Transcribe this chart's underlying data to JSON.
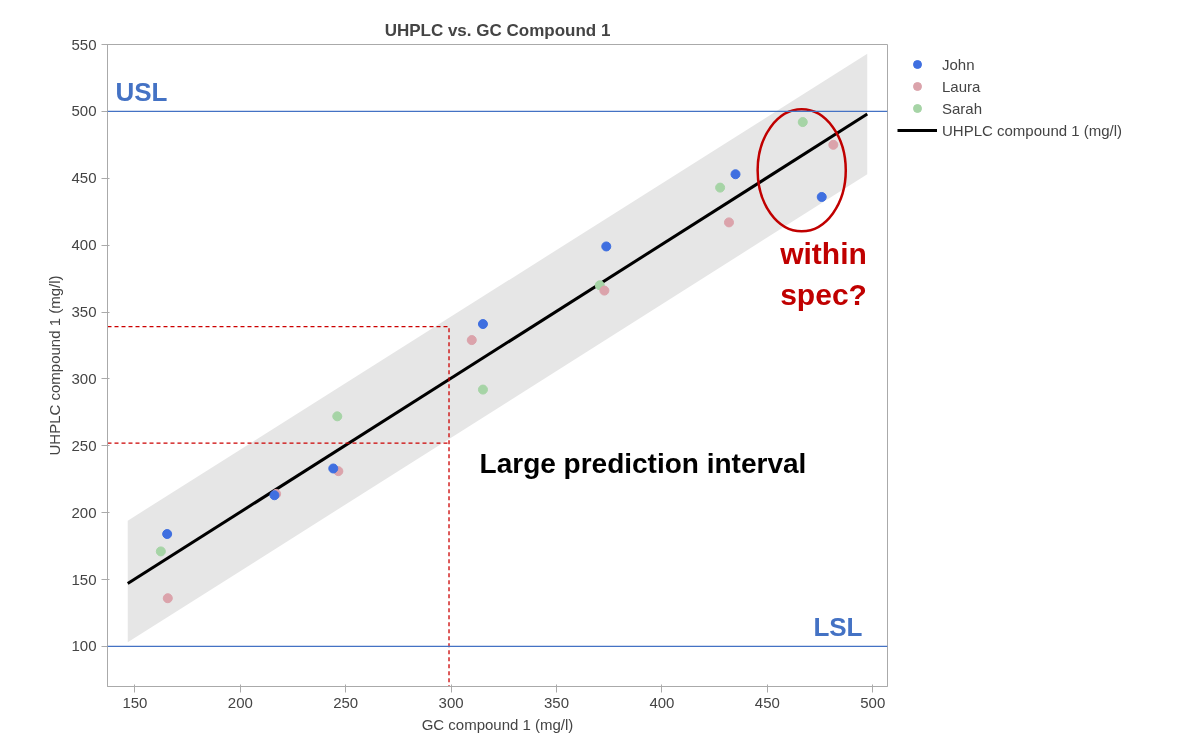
{
  "chart_data": {
    "type": "scatter",
    "title": "UHPLC vs. GC Compound 1",
    "xlabel": "GC compound 1 (mg/l)",
    "ylabel": "UHPLC compound 1 (mg/l)",
    "xlim": [
      137,
      507
    ],
    "ylim": [
      70,
      550
    ],
    "xticks": [
      150,
      200,
      250,
      300,
      350,
      400,
      450,
      500
    ],
    "yticks": [
      100,
      150,
      200,
      250,
      300,
      350,
      400,
      450,
      500,
      550
    ],
    "grid": false,
    "legend": "top right",
    "series": [
      {
        "name": "John",
        "color": "#3f6fe0",
        "marker": "circle",
        "x": [
          165.3,
          216.2,
          244.1,
          315.1,
          373.6,
          434.9,
          475.8
        ],
        "values": [
          184,
          213,
          233,
          341,
          399,
          453,
          436
        ]
      },
      {
        "name": "Laura",
        "color": "#dba3ab",
        "marker": "circle",
        "x": [
          165.6,
          217,
          246.5,
          309.8,
          372.7,
          431.8,
          481.3
        ],
        "values": [
          136,
          214,
          231,
          329,
          366,
          417,
          475
        ]
      },
      {
        "name": "Sarah",
        "color": "#a6d4a6",
        "marker": "circle",
        "x": [
          162.3,
          246.0,
          315.1,
          370.5,
          427.6,
          466.8
        ],
        "values": [
          171,
          272,
          292,
          370,
          443,
          492
        ]
      },
      {
        "name": "UHPLC compound 1 (mg/l)",
        "type": "line",
        "color": "#000000",
        "x": [
          146.6,
          497.4
        ],
        "values": [
          147,
          498
        ],
        "lower": [
          103,
          453
        ],
        "upper": [
          194,
          543
        ]
      },
      {
        "type": "line",
        "color": "#cc0000",
        "line_style": "dashed",
        "x": [
          137,
          299,
          299
        ],
        "values": [
          339,
          339,
          70
        ]
      },
      {
        "type": "line",
        "color": "#cc0000",
        "line_style": "dashed",
        "x": [
          137,
          299
        ],
        "values": [
          252,
          252
        ]
      }
    ],
    "ref_lines": [
      {
        "axis": "y",
        "value": 500,
        "label": "USL",
        "color": "#4472c4"
      },
      {
        "axis": "y",
        "value": 100,
        "label": "LSL",
        "color": "#4472c4"
      }
    ],
    "annotations": [
      "within spec?",
      "Large prediction interval"
    ]
  }
}
